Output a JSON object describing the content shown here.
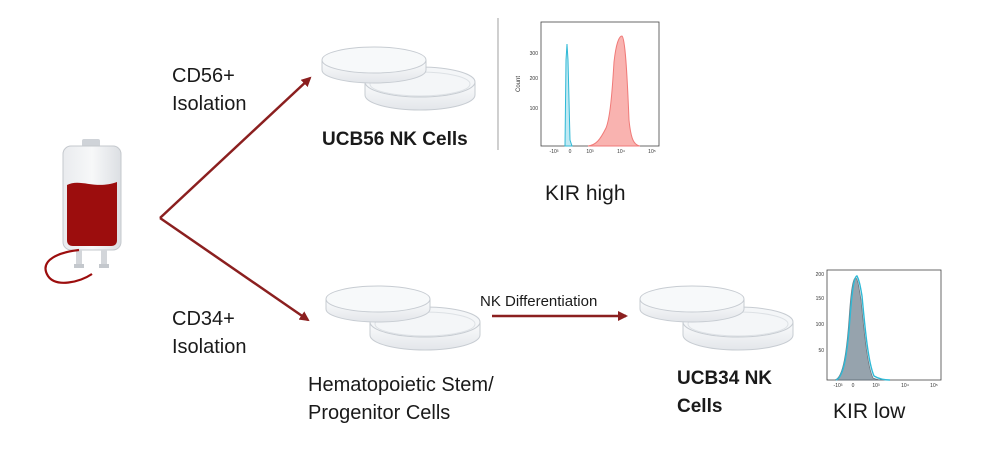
{
  "labels": {
    "cd56_line1": "CD56+",
    "cd56_line2": "Isolation",
    "cd34_line1": "CD34+",
    "cd34_line2": "Isolation",
    "ucb56": "UCB56 NK Cells",
    "kir_high": "KIR high",
    "nk_diff": "NK Differentiation",
    "hsc_line1": "Hematopoietic Stem/",
    "hsc_line2": "Progenitor Cells",
    "ucb34_line1": "UCB34 NK",
    "ucb34_line2": "Cells",
    "kir_low": "KIR low"
  },
  "histogram_top": {
    "ylabel": "Count",
    "yticks": [
      "300",
      "200",
      "100"
    ],
    "xticks": [
      "-10³",
      "0",
      "10³",
      "10⁴",
      "10⁵"
    ],
    "colors": {
      "blue": "#2fb9d6",
      "red": "#f07a78",
      "red_fill": "#f9b3b0"
    }
  },
  "histogram_bottom": {
    "yticks": [
      "200",
      "150",
      "100",
      "50"
    ],
    "xticks": [
      "-10³",
      "0",
      "10³",
      "10⁴",
      "10⁵"
    ],
    "colors": {
      "blue": "#2fb9d6",
      "gray_fill": "#8b9aa5"
    }
  },
  "colors": {
    "arrow": "#8b1f1f",
    "blood": "#9c0d0d"
  }
}
